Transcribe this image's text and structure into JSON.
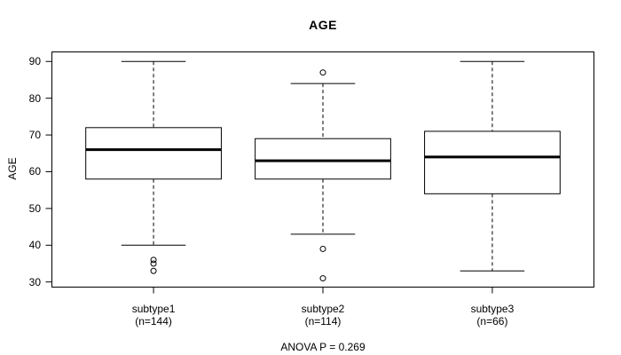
{
  "chart_data": {
    "type": "boxplot",
    "title": "AGE",
    "ylabel": "AGE",
    "xlabel": "",
    "annotation": "ANOVA P = 0.269",
    "yticks": [
      30,
      40,
      50,
      60,
      70,
      80,
      90
    ],
    "ylim": [
      28.6,
      92.6
    ],
    "grid": false,
    "groups": [
      {
        "label": "subtype1",
        "sublabel": "(n=144)",
        "n": 144,
        "whisker_low": 40,
        "q1": 58,
        "median": 66,
        "q3": 72,
        "whisker_high": 90,
        "outliers": [
          36,
          35,
          33
        ]
      },
      {
        "label": "subtype2",
        "sublabel": "(n=114)",
        "n": 114,
        "whisker_low": 43,
        "q1": 58,
        "median": 63,
        "q3": 69,
        "whisker_high": 84,
        "outliers": [
          87,
          39,
          31
        ]
      },
      {
        "label": "subtype3",
        "sublabel": "(n=66)",
        "n": 66,
        "whisker_low": 33,
        "q1": 54,
        "median": 64,
        "q3": 71,
        "whisker_high": 90,
        "outliers": []
      }
    ],
    "colors": {
      "stroke": "#000000",
      "box_fill": "#ffffff",
      "background": "#ffffff",
      "text": "#000000"
    }
  }
}
